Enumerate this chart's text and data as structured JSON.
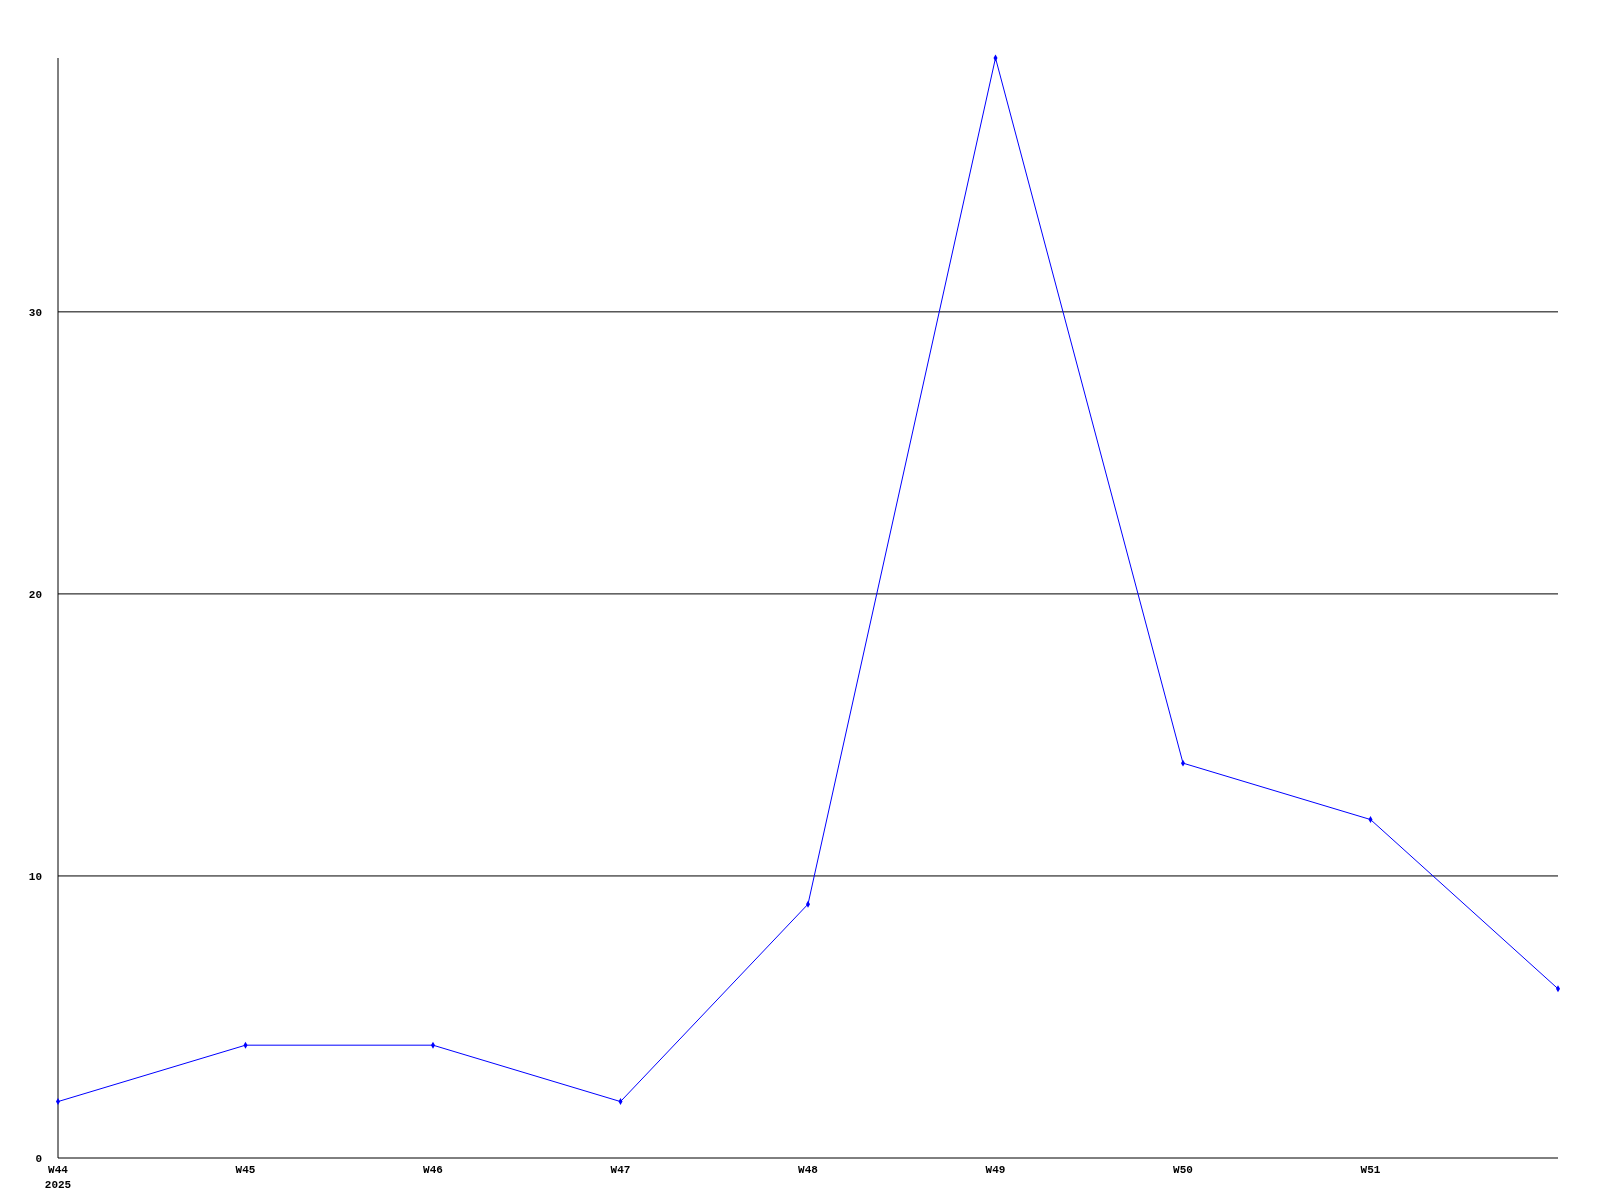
{
  "chart_data": {
    "type": "line",
    "categories": [
      "W44\n2025",
      "W45",
      "W46",
      "W47",
      "W48",
      "W49",
      "W50",
      "W51",
      null
    ],
    "series": [
      {
        "color": "#0000ff",
        "values": [
          2,
          4,
          4,
          2,
          9,
          39,
          14,
          12,
          6
        ]
      }
    ],
    "ylim": [
      0,
      39
    ],
    "yticks": [
      0,
      10,
      20,
      30
    ],
    "grid": "y",
    "marker": "diamond",
    "line_style": "solid"
  }
}
